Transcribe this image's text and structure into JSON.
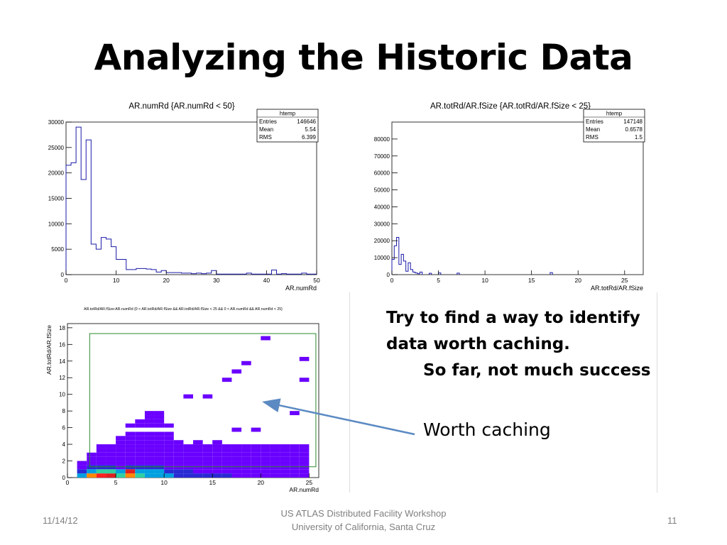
{
  "slide": {
    "title": "Analyzing the Historic Data",
    "bullets": {
      "line1": "Try to find a way to identify data worth caching.",
      "line2": "So far, not much success",
      "line3": "Worth caching"
    },
    "footer": {
      "date": "11/14/12",
      "center_line1": "US ATLAS Distributed Facility Workshop",
      "center_line2": "University of California, Santa Cruz",
      "page": "11"
    },
    "colors": {
      "hist_line": "#1a1aa8",
      "arrow": "#5b8ac2",
      "box": "#2a8a2a",
      "accent": "#6a00ff"
    }
  },
  "chart_data": [
    {
      "type": "bar",
      "title": "AR.numRd {AR.numRd < 50}",
      "xlabel": "AR.numRd",
      "ylabel": "",
      "xlim": [
        0,
        50
      ],
      "ylim": [
        0,
        30000
      ],
      "x_ticks": [
        "0",
        "10",
        "20",
        "30",
        "40",
        "50"
      ],
      "y_ticks": [
        "0",
        "5000",
        "10000",
        "15000",
        "20000",
        "25000",
        "30000"
      ],
      "stats": {
        "name": "htemp",
        "rows": [
          [
            "Entries",
            "146646"
          ],
          [
            "Mean",
            "5.54"
          ],
          [
            "RMS",
            "6.399"
          ]
        ]
      },
      "bin_width": 1,
      "x": [
        0,
        1,
        2,
        3,
        4,
        5,
        6,
        7,
        8,
        9,
        10,
        11,
        12,
        13,
        14,
        15,
        16,
        17,
        18,
        19,
        20,
        21,
        22,
        23,
        24,
        25,
        26,
        27,
        28,
        29,
        30,
        31,
        32,
        33,
        34,
        35,
        36,
        37,
        38,
        39,
        40,
        41,
        42,
        43,
        44,
        45,
        46,
        47,
        48,
        49
      ],
      "values": [
        21500,
        22000,
        29000,
        18700,
        26500,
        6000,
        5000,
        7300,
        7000,
        5500,
        3000,
        3000,
        1000,
        1000,
        1200,
        1200,
        1100,
        1000,
        500,
        800,
        400,
        400,
        400,
        300,
        300,
        200,
        300,
        200,
        300,
        800,
        100,
        100,
        100,
        100,
        100,
        100,
        300,
        100,
        100,
        100,
        100,
        900,
        100,
        200,
        100,
        100,
        100,
        300,
        100,
        100
      ]
    },
    {
      "type": "bar",
      "title": "AR.totRd/AR.fSize {AR.totRd/AR.fSize < 25}",
      "xlabel": "AR.totRd/AR.fSize",
      "ylabel": "",
      "xlim": [
        0,
        27
      ],
      "ylim": [
        0,
        90000
      ],
      "x_ticks": [
        "0",
        "5",
        "10",
        "15",
        "20",
        "25"
      ],
      "y_ticks": [
        "0",
        "10000",
        "20000",
        "30000",
        "40000",
        "50000",
        "60000",
        "70000",
        "80000"
      ],
      "stats": {
        "name": "htemp",
        "rows": [
          [
            "Entries",
            "147148"
          ],
          [
            "Mean",
            "0.6578"
          ],
          [
            "RMS",
            "1.5"
          ]
        ]
      },
      "bin_width": 0.25,
      "x": [
        0,
        0.25,
        0.5,
        0.75,
        1,
        1.25,
        1.5,
        1.75,
        2,
        2.25,
        2.5,
        2.75,
        3,
        4,
        5,
        7,
        17
      ],
      "values": [
        9000,
        17000,
        22000,
        6000,
        12000,
        8000,
        2000,
        7000,
        3000,
        1500,
        1000,
        500,
        1500,
        800,
        1000,
        900,
        1200
      ]
    },
    {
      "type": "heatmap",
      "title": "AR.totRd/AR.fSize:AR.numRd {0 < AR.totRd/AR.fSize && AR.totRd/AR.fSize < 25 && 0 < AR.numRd && AR.numRd < 25}",
      "xlabel": "AR.numRd",
      "ylabel": "AR.totRd/AR.fSize",
      "xlim": [
        0,
        26
      ],
      "ylim": [
        0,
        18.5
      ],
      "x_ticks": [
        "0",
        "5",
        "10",
        "15",
        "20",
        "25"
      ],
      "y_ticks": [
        "0",
        "2",
        "4",
        "6",
        "8",
        "10",
        "12",
        "14",
        "16",
        "18"
      ],
      "x": [
        "1-2",
        "2-3",
        "3-4",
        "4-5",
        "5-6",
        "6-7",
        "7-8",
        "8-9",
        "9-10",
        "10-11",
        "11-12",
        "12-13",
        "13-14",
        "14-15",
        "15-16",
        "16-17",
        "17-18",
        "18-19",
        "19-20",
        "20-21",
        "21-22",
        "22-23",
        "23-24",
        "24-25"
      ],
      "y": [
        "0-0.5",
        "0.5-1",
        "1-1.5",
        "1.5-2",
        "2-2.5",
        "2.5-3",
        "3-3.5",
        "3.5-4",
        "4-4.5",
        "4.5-5",
        "5-5.5",
        "5.5-6",
        "6-6.5",
        "6.5-7",
        "7-7.5",
        "7.5-8",
        "8-8.5",
        "9.5-10",
        "11.5-12",
        "12.5-13",
        "13.5-14",
        "14-14.5",
        "16.5-17"
      ],
      "values": [
        [
          3,
          5,
          7,
          6,
          4,
          5,
          4,
          3,
          3,
          3,
          2,
          2,
          2,
          2,
          2,
          2,
          1,
          1,
          1,
          1,
          1,
          1,
          1,
          1
        ],
        [
          2,
          3,
          4,
          4,
          3,
          6,
          3,
          3,
          3,
          2,
          2,
          2,
          1,
          1,
          1,
          1,
          1,
          1,
          1,
          1,
          1,
          1,
          1,
          1
        ],
        [
          1,
          2,
          2,
          2,
          1,
          2,
          2,
          2,
          2,
          1,
          1,
          1,
          1,
          1,
          1,
          1,
          1,
          1,
          1,
          1,
          1,
          1,
          1,
          1
        ],
        [
          1,
          1,
          1,
          1,
          1,
          1,
          1,
          1,
          1,
          1,
          1,
          1,
          1,
          1,
          1,
          1,
          1,
          1,
          1,
          1,
          1,
          1,
          1,
          1
        ],
        [
          0,
          1,
          1,
          1,
          1,
          1,
          1,
          1,
          1,
          1,
          1,
          1,
          1,
          1,
          1,
          1,
          1,
          1,
          1,
          1,
          1,
          1,
          1,
          1
        ],
        [
          0,
          1,
          1,
          1,
          1,
          1,
          1,
          1,
          1,
          1,
          1,
          1,
          1,
          1,
          1,
          1,
          1,
          1,
          1,
          1,
          1,
          1,
          1,
          1
        ],
        [
          0,
          0,
          1,
          1,
          1,
          1,
          1,
          1,
          1,
          1,
          1,
          1,
          1,
          1,
          1,
          1,
          1,
          1,
          1,
          1,
          1,
          1,
          1,
          1
        ],
        [
          0,
          0,
          1,
          1,
          1,
          1,
          1,
          1,
          1,
          1,
          1,
          1,
          1,
          1,
          1,
          1,
          1,
          1,
          1,
          1,
          1,
          1,
          1,
          1
        ],
        [
          0,
          0,
          0,
          0,
          1,
          1,
          1,
          1,
          1,
          1,
          1,
          0,
          1,
          0,
          1,
          0,
          0,
          0,
          0,
          0,
          0,
          0,
          0,
          0
        ],
        [
          0,
          0,
          0,
          0,
          1,
          1,
          1,
          1,
          1,
          1,
          0,
          0,
          0,
          0,
          0,
          0,
          0,
          0,
          0,
          0,
          0,
          0,
          0,
          0
        ],
        [
          0,
          0,
          0,
          0,
          0,
          1,
          1,
          1,
          1,
          1,
          0,
          0,
          0,
          0,
          0,
          0,
          0,
          0,
          0,
          0,
          0,
          0,
          0,
          0
        ],
        [
          0,
          0,
          0,
          0,
          0,
          0,
          0,
          0,
          0,
          0,
          0,
          0,
          0,
          0,
          0,
          0,
          1,
          0,
          1,
          0,
          0,
          0,
          0,
          0
        ],
        [
          0,
          0,
          0,
          0,
          0,
          1,
          1,
          1,
          1,
          1,
          0,
          0,
          0,
          0,
          0,
          0,
          0,
          0,
          0,
          0,
          0,
          0,
          0,
          0
        ],
        [
          0,
          0,
          0,
          0,
          0,
          0,
          1,
          1,
          1,
          0,
          0,
          0,
          0,
          0,
          0,
          0,
          0,
          0,
          0,
          0,
          0,
          0,
          0,
          0
        ],
        [
          0,
          0,
          0,
          0,
          0,
          0,
          0,
          1,
          1,
          0,
          0,
          0,
          0,
          0,
          0,
          0,
          0,
          0,
          0,
          0,
          0,
          0,
          0,
          0
        ],
        [
          0,
          0,
          0,
          0,
          0,
          0,
          0,
          1,
          1,
          0,
          0,
          0,
          0,
          0,
          0,
          0,
          0,
          0,
          0,
          0,
          0,
          0,
          1,
          0
        ],
        [
          0,
          0,
          0,
          0,
          0,
          0,
          0,
          0,
          0,
          0,
          0,
          0,
          0,
          0,
          0,
          0,
          0,
          0,
          0,
          0,
          0,
          0,
          0,
          0
        ],
        [
          0,
          0,
          0,
          0,
          0,
          0,
          0,
          0,
          0,
          0,
          0,
          1,
          0,
          1,
          0,
          0,
          0,
          0,
          0,
          0,
          0,
          0,
          0,
          0
        ],
        [
          0,
          0,
          0,
          0,
          0,
          0,
          0,
          0,
          0,
          0,
          0,
          0,
          0,
          0,
          0,
          1,
          0,
          0,
          0,
          0,
          0,
          0,
          0,
          1
        ],
        [
          0,
          0,
          0,
          0,
          0,
          0,
          0,
          0,
          0,
          0,
          0,
          0,
          0,
          0,
          0,
          0,
          1,
          0,
          0,
          0,
          0,
          0,
          0,
          0
        ],
        [
          0,
          0,
          0,
          0,
          0,
          0,
          0,
          0,
          0,
          0,
          0,
          0,
          0,
          0,
          0,
          0,
          0,
          1,
          0,
          0,
          0,
          0,
          0,
          0
        ],
        [
          0,
          0,
          0,
          0,
          0,
          0,
          0,
          0,
          0,
          0,
          0,
          0,
          0,
          0,
          0,
          0,
          0,
          0,
          0,
          0,
          0,
          0,
          0,
          1
        ],
        [
          0,
          0,
          0,
          0,
          0,
          0,
          0,
          0,
          0,
          0,
          0,
          0,
          0,
          0,
          0,
          0,
          0,
          0,
          0,
          1,
          0,
          0,
          0,
          0
        ]
      ]
    }
  ]
}
